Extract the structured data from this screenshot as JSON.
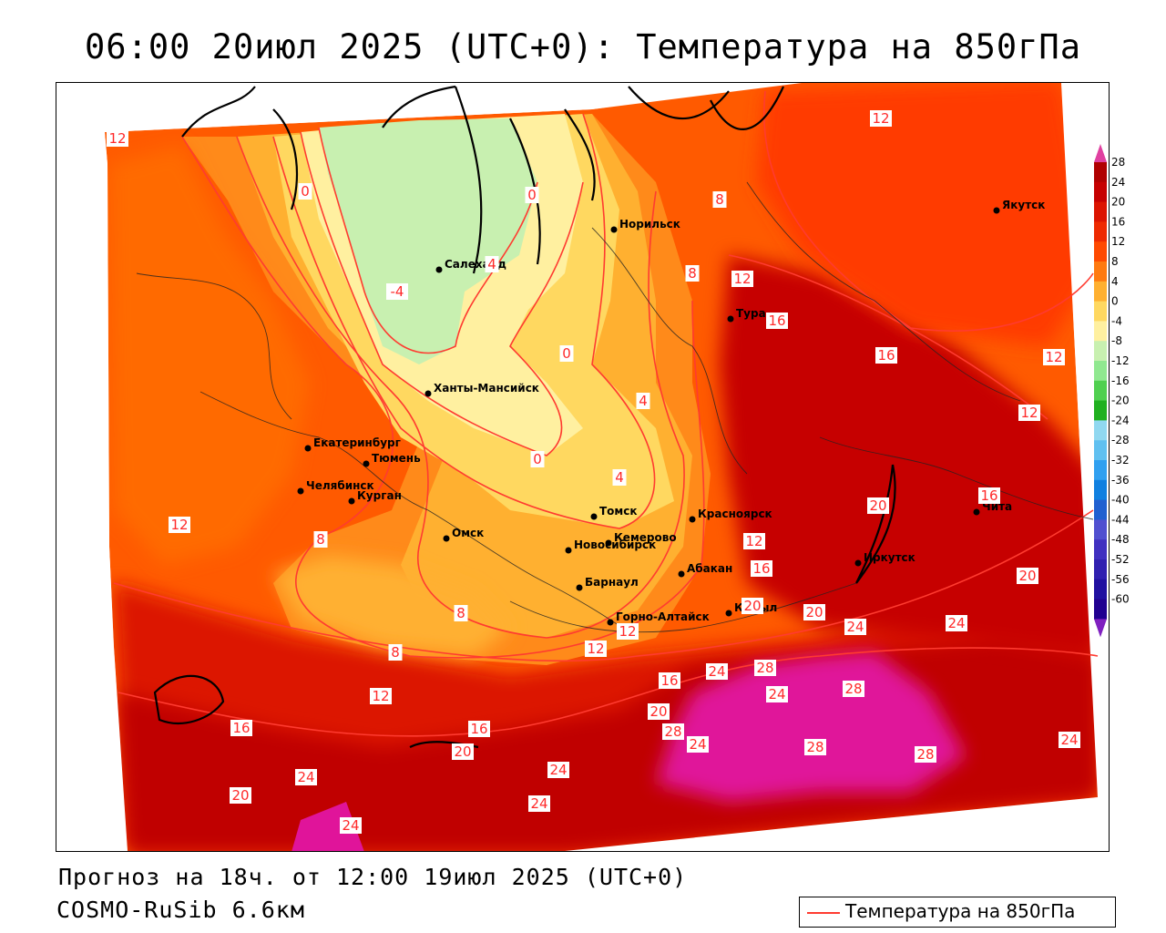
{
  "title": "06:00 20июл 2025 (UTC+0): Температура на 850гПа",
  "forecast_line": "Прогноз на 18ч. от 12:00 19июл 2025 (UTC+0)",
  "model_line": "COSMO-RuSib 6.6км",
  "legend": {
    "label": "Температура на 850гПа",
    "line_color": "#ff3b30"
  },
  "colorbar": {
    "levels": [
      "28",
      "24",
      "20",
      "16",
      "12",
      "8",
      "4",
      "0",
      "-4",
      "-8",
      "-12",
      "-16",
      "-20",
      "-24",
      "-28",
      "-32",
      "-36",
      "-40",
      "-44",
      "-48",
      "-52",
      "-56",
      "-60"
    ],
    "colors": [
      "#b00000",
      "#c60000",
      "#dc1400",
      "#ee2a00",
      "#ff4a00",
      "#ff7a10",
      "#ffb030",
      "#ffd860",
      "#fff0a0",
      "#c8f0b0",
      "#90e890",
      "#50d050",
      "#20b020",
      "#90d8f0",
      "#60c0f0",
      "#30a0f0",
      "#1080e0",
      "#2060d0",
      "#5050d0",
      "#4030c0",
      "#3020b0",
      "#2010a0",
      "#200090"
    ],
    "top_arrow": "#e040a0",
    "bottom_arrow": "#8020c0"
  },
  "cities": [
    {
      "name": "Салехард"
    },
    {
      "name": "Норильск"
    },
    {
      "name": "Якутск"
    },
    {
      "name": "Тура"
    },
    {
      "name": "Ханты-Мансийск"
    },
    {
      "name": "Екатеринбург"
    },
    {
      "name": "Тюмень"
    },
    {
      "name": "Челябинск"
    },
    {
      "name": "Курган"
    },
    {
      "name": "Омск"
    },
    {
      "name": "Новосибирск"
    },
    {
      "name": "Томск"
    },
    {
      "name": "Кемерово"
    },
    {
      "name": "Красноярск"
    },
    {
      "name": "Абакан"
    },
    {
      "name": "Барнаул"
    },
    {
      "name": "Горно-Алтайск"
    },
    {
      "name": "Кызыл"
    },
    {
      "name": "Иркутск"
    },
    {
      "name": "Чита"
    }
  ],
  "isoline_labels": [
    {
      "text": "12"
    },
    {
      "text": "12"
    },
    {
      "text": "8"
    },
    {
      "text": "0"
    },
    {
      "text": "0"
    },
    {
      "text": "-4"
    },
    {
      "text": "4"
    },
    {
      "text": "8"
    },
    {
      "text": "12"
    },
    {
      "text": "16"
    },
    {
      "text": "16"
    },
    {
      "text": "12"
    },
    {
      "text": "12"
    },
    {
      "text": "0"
    },
    {
      "text": "4"
    },
    {
      "text": "0"
    },
    {
      "text": "4"
    },
    {
      "text": "8"
    },
    {
      "text": "12"
    },
    {
      "text": "12"
    },
    {
      "text": "16"
    },
    {
      "text": "20"
    },
    {
      "text": "16"
    },
    {
      "text": "20"
    },
    {
      "text": "20"
    },
    {
      "text": "20"
    },
    {
      "text": "24"
    },
    {
      "text": "24"
    },
    {
      "text": "8"
    },
    {
      "text": "8"
    },
    {
      "text": "12"
    },
    {
      "text": "12"
    },
    {
      "text": "16"
    },
    {
      "text": "24"
    },
    {
      "text": "28"
    },
    {
      "text": "24"
    },
    {
      "text": "28"
    },
    {
      "text": "20"
    },
    {
      "text": "28"
    },
    {
      "text": "24"
    },
    {
      "text": "28"
    },
    {
      "text": "28"
    },
    {
      "text": "24"
    },
    {
      "text": "16"
    },
    {
      "text": "20"
    },
    {
      "text": "24"
    },
    {
      "text": "24"
    },
    {
      "text": "24"
    },
    {
      "text": "16"
    },
    {
      "text": "20"
    },
    {
      "text": "24"
    },
    {
      "text": "12"
    }
  ]
}
